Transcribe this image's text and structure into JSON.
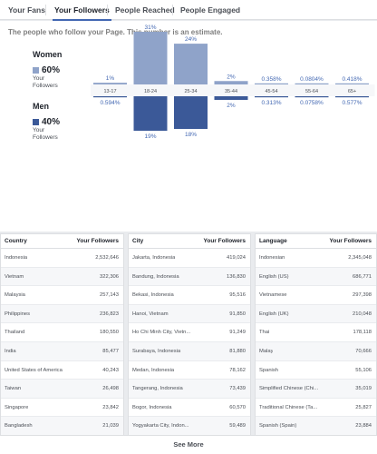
{
  "tabs": [
    {
      "label": "Your Fans",
      "active": false
    },
    {
      "label": "Your Followers",
      "active": true
    },
    {
      "label": "People Reached",
      "active": false
    },
    {
      "label": "People Engaged",
      "active": false
    }
  ],
  "chart": {
    "subtitle": "The people who follow your Page. This number is an estimate.",
    "women": {
      "title": "Women",
      "percent": "60%",
      "label": "Your Followers",
      "color": "#8fa3c9"
    },
    "men": {
      "title": "Men",
      "percent": "40%",
      "label": "Your Followers",
      "color": "#3b5998"
    }
  },
  "chart_data": {
    "type": "bar",
    "categories": [
      "13-17",
      "18-24",
      "25-34",
      "35-44",
      "45-54",
      "55-64",
      "65+"
    ],
    "series": [
      {
        "name": "Women",
        "values": [
          1,
          31,
          24,
          2,
          0.358,
          0.0804,
          0.418
        ],
        "labels": [
          "1%",
          "31%",
          "24%",
          "2%",
          "0.358%",
          "0.0804%",
          "0.418%"
        ]
      },
      {
        "name": "Men",
        "values": [
          0.594,
          19,
          18,
          2,
          0.313,
          0.0758,
          0.577
        ],
        "labels": [
          "0.594%",
          "19%",
          "18%",
          "2%",
          "0.313%",
          "0.0758%",
          "0.577%"
        ]
      }
    ]
  },
  "tables": [
    {
      "header_name": "Country",
      "header_value": "Your Followers",
      "rows": [
        {
          "name": "Indonesia",
          "value": "2,532,646"
        },
        {
          "name": "Vietnam",
          "value": "322,306"
        },
        {
          "name": "Malaysia",
          "value": "257,143"
        },
        {
          "name": "Philippines",
          "value": "236,823"
        },
        {
          "name": "Thailand",
          "value": "180,550"
        },
        {
          "name": "India",
          "value": "85,477"
        },
        {
          "name": "United States of America",
          "value": "40,243"
        },
        {
          "name": "Taiwan",
          "value": "26,498"
        },
        {
          "name": "Singapore",
          "value": "23,842"
        },
        {
          "name": "Bangladesh",
          "value": "21,039"
        }
      ]
    },
    {
      "header_name": "City",
      "header_value": "Your Followers",
      "rows": [
        {
          "name": "Jakarta, Indonesia",
          "value": "419,024"
        },
        {
          "name": "Bandung, Indonesia",
          "value": "136,830"
        },
        {
          "name": "Bekasi, Indonesia",
          "value": "95,516"
        },
        {
          "name": "Hanoi, Vietnam",
          "value": "91,850"
        },
        {
          "name": "Ho Chi Minh City, Vietn...",
          "value": "91,249"
        },
        {
          "name": "Surabaya, Indonesia",
          "value": "81,880"
        },
        {
          "name": "Medan, Indonesia",
          "value": "78,162"
        },
        {
          "name": "Tangerang, Indonesia",
          "value": "73,439"
        },
        {
          "name": "Bogor, Indonesia",
          "value": "60,570"
        },
        {
          "name": "Yogyakarta City, Indon...",
          "value": "59,489"
        }
      ]
    },
    {
      "header_name": "Language",
      "header_value": "Your Followers",
      "rows": [
        {
          "name": "Indonesian",
          "value": "2,345,048"
        },
        {
          "name": "English (US)",
          "value": "686,771"
        },
        {
          "name": "Vietnamese",
          "value": "297,398"
        },
        {
          "name": "English (UK)",
          "value": "210,048"
        },
        {
          "name": "Thai",
          "value": "178,118"
        },
        {
          "name": "Malay",
          "value": "70,666"
        },
        {
          "name": "Spanish",
          "value": "55,106"
        },
        {
          "name": "Simplified Chinese (Chi...",
          "value": "35,019"
        },
        {
          "name": "Traditional Chinese (Ta...",
          "value": "25,827"
        },
        {
          "name": "Spanish (Spain)",
          "value": "23,884"
        }
      ]
    }
  ],
  "see_more": "See More"
}
